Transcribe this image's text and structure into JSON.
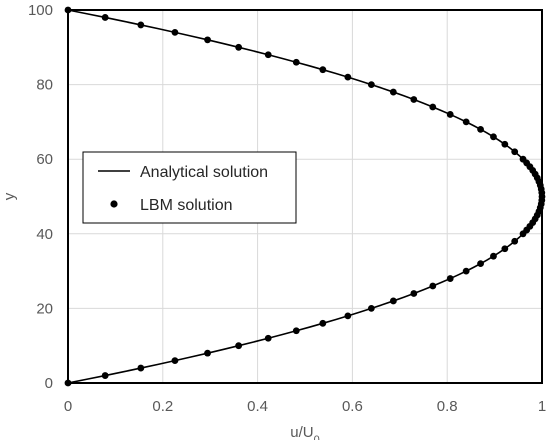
{
  "chart_data": {
    "type": "line",
    "xlabel": "u/U",
    "xlabel_subscript": "0",
    "ylabel": "y",
    "xlim": [
      0,
      1
    ],
    "ylim": [
      0,
      100
    ],
    "x_ticks": [
      "0",
      "0.2",
      "0.4",
      "0.6",
      "0.8",
      "1"
    ],
    "y_ticks": [
      "0",
      "20",
      "40",
      "60",
      "80",
      "100"
    ],
    "grid": true,
    "legend_placement": "center-left",
    "legend": [
      "Analytical solution",
      "LBM solution"
    ],
    "series": [
      {
        "name": "Analytical solution",
        "style": "line",
        "color": "#000000",
        "formula": "u/U0 = 4*(y/100)*(1 - y/100)",
        "y": [
          0,
          1,
          2,
          3,
          4,
          5,
          6,
          7,
          8,
          9,
          10,
          11,
          12,
          13,
          14,
          15,
          16,
          17,
          18,
          19,
          20,
          21,
          22,
          23,
          24,
          25,
          26,
          27,
          28,
          29,
          30,
          31,
          32,
          33,
          34,
          35,
          36,
          37,
          38,
          39,
          40,
          41,
          42,
          43,
          44,
          45,
          46,
          47,
          48,
          49,
          50,
          51,
          52,
          53,
          54,
          55,
          56,
          57,
          58,
          59,
          60,
          61,
          62,
          63,
          64,
          65,
          66,
          67,
          68,
          69,
          70,
          71,
          72,
          73,
          74,
          75,
          76,
          77,
          78,
          79,
          80,
          81,
          82,
          83,
          84,
          85,
          86,
          87,
          88,
          89,
          90,
          91,
          92,
          93,
          94,
          95,
          96,
          97,
          98,
          99,
          100
        ]
      },
      {
        "name": "LBM solution",
        "style": "markers",
        "color": "#000000",
        "marker": "circle",
        "formula": "u/U0 = 4*(y/100)*(1 - y/100)",
        "y": [
          0,
          2,
          4,
          6,
          8,
          10,
          12,
          14,
          16,
          18,
          20,
          22,
          24,
          26,
          28,
          30,
          32,
          34,
          36,
          38,
          40,
          41,
          42,
          43,
          44,
          45,
          46,
          47,
          48,
          49,
          50,
          51,
          52,
          53,
          54,
          55,
          56,
          57,
          58,
          59,
          60,
          62,
          64,
          66,
          68,
          70,
          72,
          74,
          76,
          78,
          80,
          82,
          84,
          86,
          88,
          90,
          92,
          94,
          96,
          98,
          100
        ]
      }
    ]
  }
}
